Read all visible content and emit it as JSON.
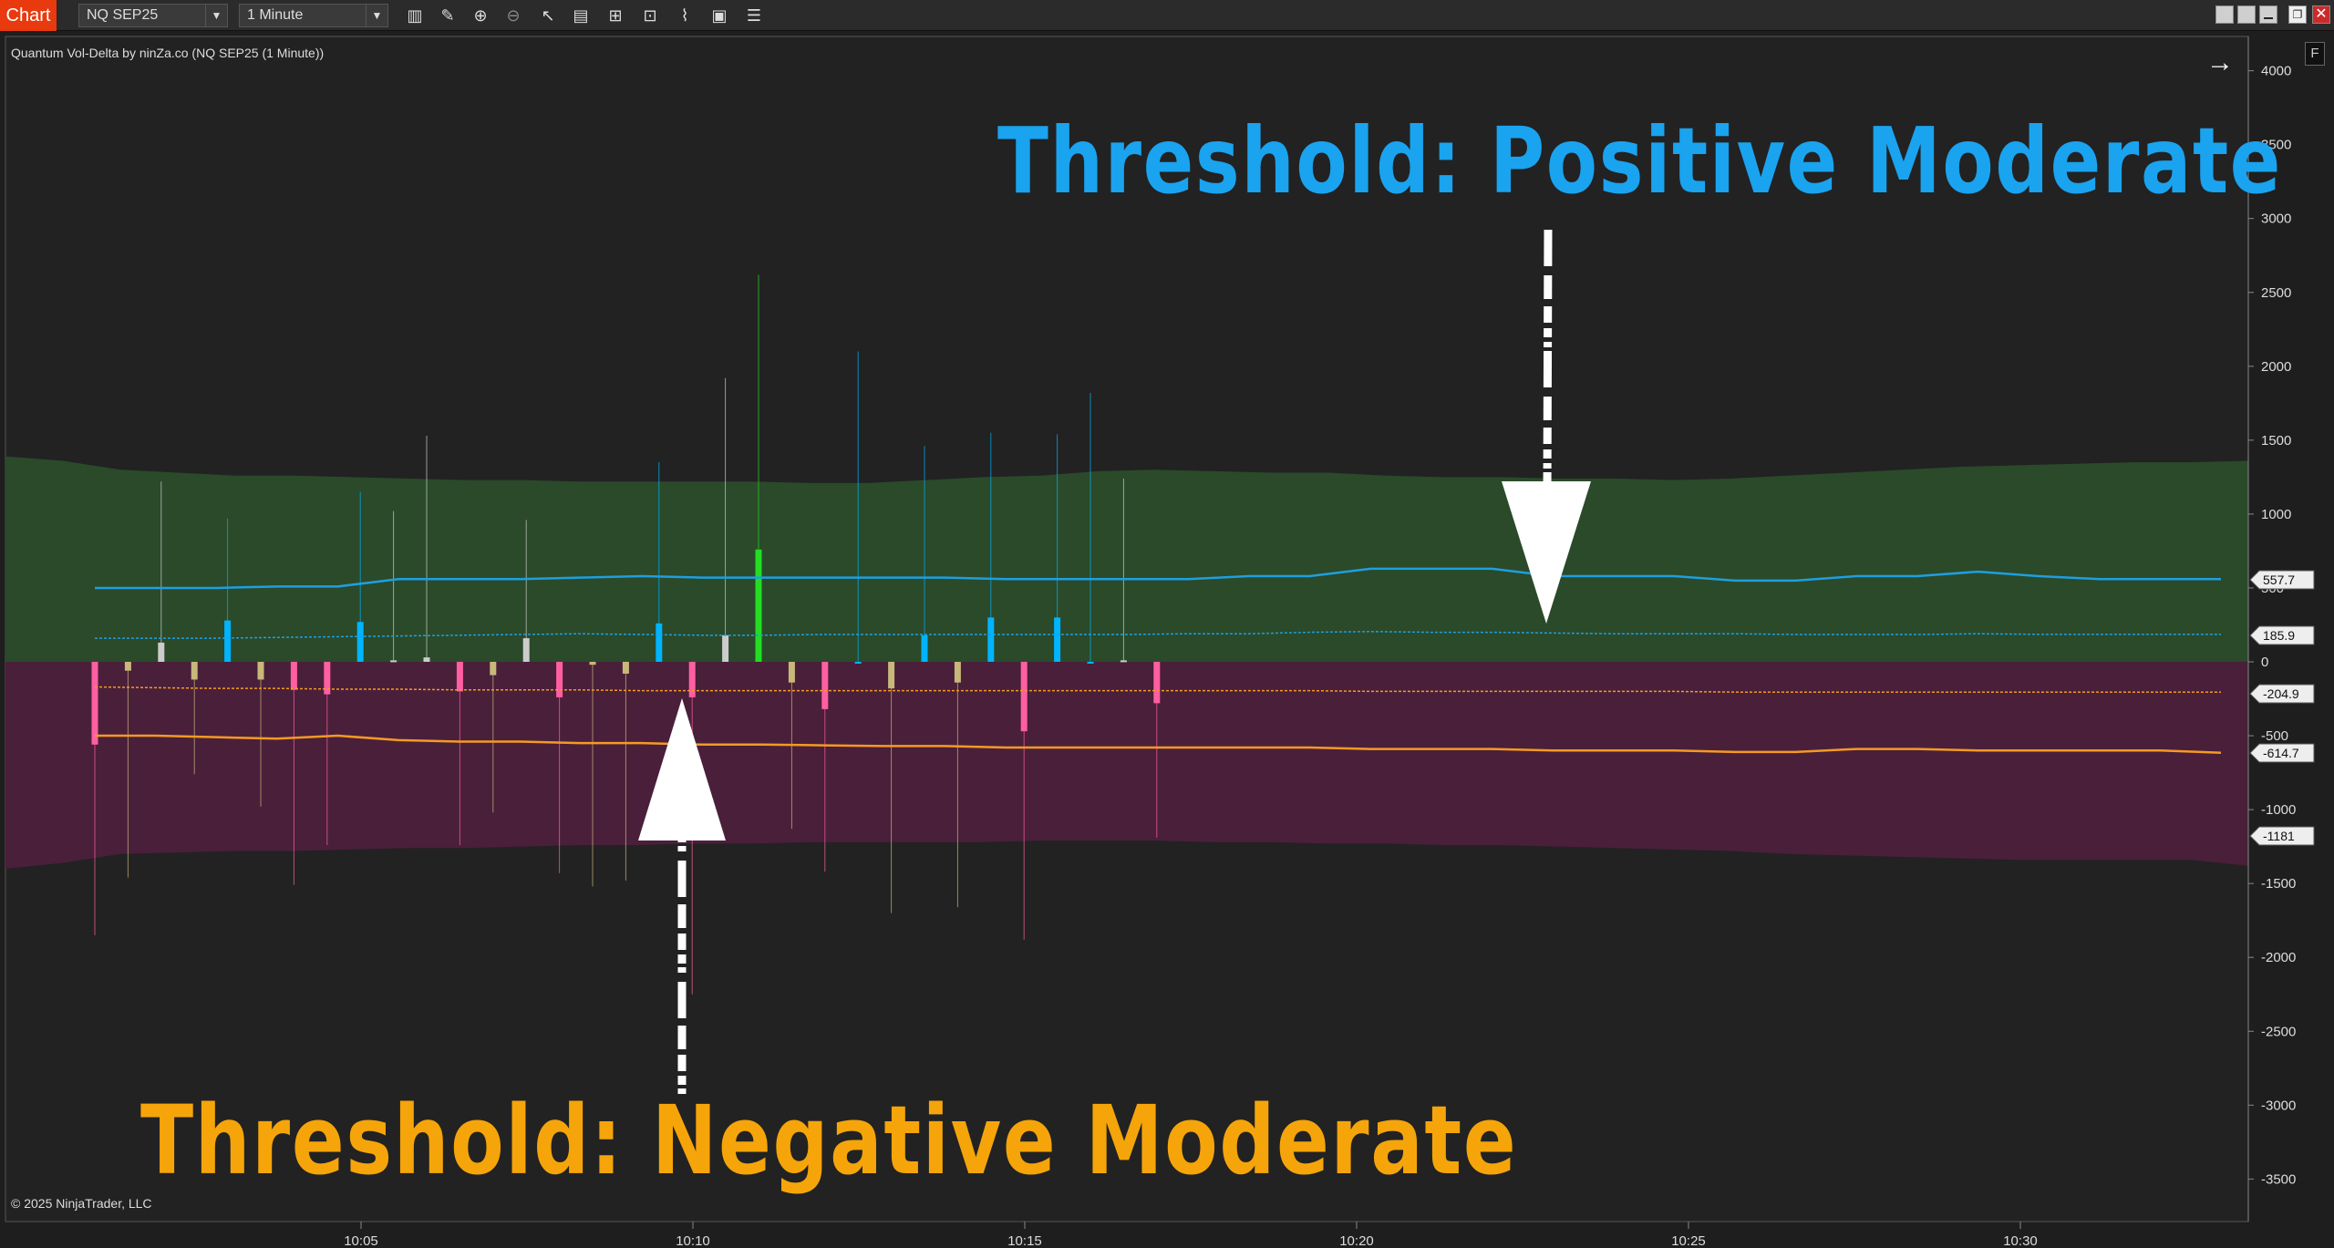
{
  "toolbar": {
    "app_tab": "Chart",
    "instrument": "NQ SEP25",
    "interval": "1 Minute",
    "icons": [
      "bar-type-icon",
      "draw-pencil-icon",
      "zoom-in-icon",
      "zoom-out-icon",
      "pointer-icon",
      "data-box-icon",
      "properties-icon",
      "strategies-icon",
      "indicators-icon",
      "chart-trader-icon",
      "list-icon"
    ],
    "window_controls": [
      "tile-icon",
      "tile-icon",
      "minimize-icon",
      "restore-icon",
      "close-icon"
    ]
  },
  "chart": {
    "title": "Quantum Vol-Delta by ninZa.co (NQ SEP25 (1 Minute))",
    "copyright": "© 2025 NinjaTrader, LLC",
    "f_button": "F",
    "nav_arrow": "→",
    "annotation_positive": "Threshold: Positive Moderate",
    "annotation_negative": "Threshold: Negative Moderate"
  },
  "colors": {
    "background": "#222222",
    "positive_band": "#2a4a2a",
    "negative_band": "#4a1f3a",
    "positive_line": "#1e9fe0",
    "negative_line": "#f59a23",
    "annotation_positive": "#1aa3ef",
    "annotation_negative": "#f5a50a"
  },
  "chart_data": {
    "type": "bar",
    "x_ticks": [
      "10:05",
      "10:10",
      "10:15",
      "10:20",
      "10:25",
      "10:30"
    ],
    "y_ticks": [
      4000,
      3500,
      3000,
      2500,
      2000,
      1500,
      1000,
      500,
      0,
      -500,
      -1000,
      -1500,
      -2000,
      -2500,
      -3000,
      -3500
    ],
    "ylim": [
      -3600,
      4100
    ],
    "price_markers": [
      "557.7",
      "185.9",
      "-204.9",
      "-614.7",
      "-1181"
    ],
    "positive_band_upper": [
      1390,
      1360,
      1300,
      1280,
      1260,
      1260,
      1250,
      1240,
      1230,
      1230,
      1220,
      1220,
      1220,
      1220,
      1210,
      1210,
      1230,
      1250,
      1260,
      1290,
      1300,
      1290,
      1280,
      1280,
      1260,
      1250,
      1250,
      1240,
      1240,
      1230,
      1240,
      1260,
      1280,
      1300,
      1320,
      1330,
      1340,
      1350,
      1350,
      1360
    ],
    "negative_band_lower": [
      -1400,
      -1360,
      -1300,
      -1290,
      -1280,
      -1280,
      -1270,
      -1260,
      -1260,
      -1250,
      -1240,
      -1240,
      -1230,
      -1230,
      -1220,
      -1220,
      -1220,
      -1220,
      -1210,
      -1210,
      -1210,
      -1220,
      -1220,
      -1230,
      -1230,
      -1240,
      -1240,
      -1250,
      -1260,
      -1270,
      -1280,
      -1300,
      -1310,
      -1320,
      -1330,
      -1340,
      -1340,
      -1340,
      -1340,
      -1380
    ],
    "positive_moderate_line": [
      500,
      500,
      500,
      510,
      510,
      560,
      560,
      560,
      570,
      580,
      570,
      570,
      570,
      570,
      570,
      560,
      560,
      560,
      560,
      580,
      580,
      630,
      630,
      630,
      580,
      580,
      580,
      550,
      550,
      580,
      580,
      610,
      580,
      560,
      560,
      560
    ],
    "positive_weak_line": [
      160,
      160,
      160,
      165,
      170,
      175,
      180,
      185,
      190,
      185,
      180,
      180,
      185,
      185,
      185,
      185,
      185,
      185,
      190,
      190,
      200,
      205,
      200,
      200,
      195,
      190,
      190,
      190,
      185,
      185,
      185,
      190,
      186,
      186,
      186,
      186
    ],
    "negative_weak_line": [
      -170,
      -175,
      -180,
      -180,
      -185,
      -185,
      -190,
      -190,
      -190,
      -195,
      -195,
      -195,
      -195,
      -195,
      -195,
      -195,
      -195,
      -195,
      -195,
      -195,
      -195,
      -200,
      -200,
      -200,
      -200,
      -200,
      -200,
      -205,
      -205,
      -205,
      -205,
      -205,
      -205,
      -205,
      -205,
      -205
    ],
    "negative_moderate_line": [
      -500,
      -500,
      -510,
      -520,
      -500,
      -530,
      -540,
      -540,
      -550,
      -550,
      -560,
      -560,
      -565,
      -570,
      -570,
      -580,
      -580,
      -580,
      -580,
      -580,
      -580,
      -590,
      -590,
      -590,
      -600,
      -600,
      -600,
      -610,
      -610,
      -590,
      -590,
      -600,
      -600,
      -600,
      -600,
      -615
    ],
    "bars": [
      {
        "v": -560,
        "hi": 0,
        "lo": -1850,
        "c": "#ff5fa2"
      },
      {
        "v": -60,
        "hi": 0,
        "lo": -1460,
        "c": "#c8b87a"
      },
      {
        "v": 130,
        "hi": 1220,
        "lo": 0,
        "c": "#cccccc"
      },
      {
        "v": -120,
        "hi": 0,
        "lo": -760,
        "c": "#c8b87a"
      },
      {
        "v": 280,
        "hi": 970,
        "lo": 0,
        "c": "#00b4ff"
      },
      {
        "v": -120,
        "hi": 0,
        "lo": -980,
        "c": "#c8b87a"
      },
      {
        "v": -190,
        "hi": 0,
        "lo": -1510,
        "c": "#ff5fa2"
      },
      {
        "v": -220,
        "hi": 0,
        "lo": -1240,
        "c": "#ff5fa2"
      },
      {
        "v": 270,
        "hi": 1150,
        "lo": 0,
        "c": "#00b4ff"
      },
      {
        "v": 10,
        "hi": 1020,
        "lo": 0,
        "c": "#cccccc"
      },
      {
        "v": 30,
        "hi": 1530,
        "lo": 0,
        "c": "#cccccc"
      },
      {
        "v": -200,
        "hi": 0,
        "lo": -1240,
        "c": "#ff5fa2"
      },
      {
        "v": -90,
        "hi": 0,
        "lo": -1020,
        "c": "#c8b87a"
      },
      {
        "v": 160,
        "hi": 960,
        "lo": 0,
        "c": "#cccccc"
      },
      {
        "v": -240,
        "hi": 0,
        "lo": -1430,
        "c": "#ff5fa2"
      },
      {
        "v": -20,
        "hi": 0,
        "lo": -1520,
        "c": "#c8b87a"
      },
      {
        "v": -80,
        "hi": 0,
        "lo": -1480,
        "c": "#c8b87a"
      },
      {
        "v": 260,
        "hi": 1350,
        "lo": 0,
        "c": "#00b4ff"
      },
      {
        "v": -240,
        "hi": 0,
        "lo": -2250,
        "c": "#ff5fa2"
      },
      {
        "v": 180,
        "hi": 1920,
        "lo": 0,
        "c": "#cccccc"
      },
      {
        "v": 760,
        "hi": 2620,
        "lo": 0,
        "c": "#22dd22"
      },
      {
        "v": -140,
        "hi": 0,
        "lo": -1130,
        "c": "#c8b87a"
      },
      {
        "v": -320,
        "hi": 0,
        "lo": -1420,
        "c": "#ff5fa2"
      },
      {
        "v": 0,
        "hi": 2100,
        "lo": 0,
        "c": "#00b4ff"
      },
      {
        "v": -180,
        "hi": 0,
        "lo": -1700,
        "c": "#c8b87a"
      },
      {
        "v": 180,
        "hi": 1460,
        "lo": 0,
        "c": "#00b4ff"
      },
      {
        "v": -140,
        "hi": 0,
        "lo": -1660,
        "c": "#c8b87a"
      },
      {
        "v": 300,
        "hi": 1550,
        "lo": 0,
        "c": "#00b4ff"
      },
      {
        "v": -470,
        "hi": 0,
        "lo": -1880,
        "c": "#ff5fa2"
      },
      {
        "v": 300,
        "hi": 1540,
        "lo": 0,
        "c": "#00b4ff"
      },
      {
        "v": 0,
        "hi": 1820,
        "lo": 0,
        "c": "#00b4ff"
      },
      {
        "v": 10,
        "hi": 1240,
        "lo": 0,
        "c": "#cccccc"
      },
      {
        "v": -280,
        "hi": 0,
        "lo": -1190,
        "c": "#ff5fa2"
      }
    ]
  }
}
